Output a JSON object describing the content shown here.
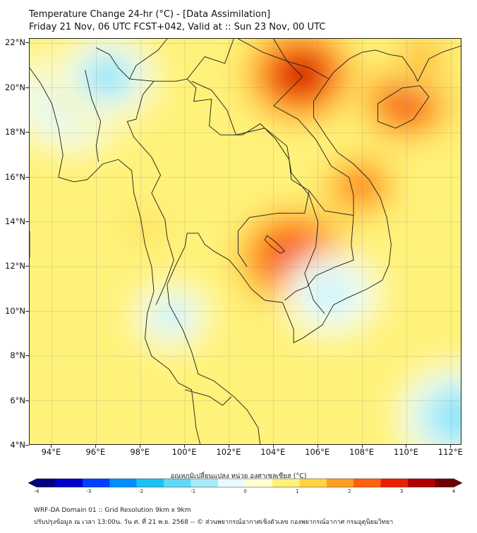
{
  "title_line1": "Temperature Change 24-hr (°C) - [Data Assimilation]",
  "title_line2": "Friday 21 Nov, 06 UTC FCST+042, Valid at :: Sun 23 Nov, 00 UTC",
  "lat_ticks": [
    "22°N",
    "20°N",
    "18°N",
    "16°N",
    "14°N",
    "12°N",
    "10°N",
    "8°N",
    "6°N",
    "4°N"
  ],
  "lon_ticks": [
    "94°E",
    "96°E",
    "98°E",
    "100°E",
    "102°E",
    "104°E",
    "106°E",
    "108°E",
    "110°E",
    "112°E"
  ],
  "colorbar": {
    "label": "อุณหภูมิเปลี่ยนแปลง หน่วย องศาเซลเซียส (°C)",
    "ticks": [
      "-4",
      "-3",
      "-2",
      "-1",
      "0",
      "1",
      "2",
      "3",
      "4"
    ],
    "min": -4,
    "max": 4,
    "colors": [
      "#00007f",
      "#0000cc",
      "#0040ff",
      "#0090ff",
      "#19c2f2",
      "#5fd8f5",
      "#a8ecfa",
      "#e8fbfd",
      "#ffffd0",
      "#fff27a",
      "#ffd540",
      "#ffa020",
      "#ff6010",
      "#e82000",
      "#b00000",
      "#6e0000"
    ]
  },
  "field": {
    "background_value": 0.6,
    "hotspots": [
      {
        "lon": 105.2,
        "lat": 20.6,
        "value": 3.0
      },
      {
        "lon": 104.9,
        "lat": 12.4,
        "value": 2.9
      },
      {
        "lon": 110.0,
        "lat": 19.4,
        "value": 2.6
      },
      {
        "lon": 107.9,
        "lat": 15.6,
        "value": 2.3
      },
      {
        "lon": 110.7,
        "lat": 21.3,
        "value": 1.8
      },
      {
        "lon": 98.2,
        "lat": 13.8,
        "value": 1.4
      },
      {
        "lon": 95.0,
        "lat": 19.5,
        "value": -1.3
      },
      {
        "lon": 96.5,
        "lat": 20.5,
        "value": -1.1
      },
      {
        "lon": 99.4,
        "lat": 9.8,
        "value": -0.7
      },
      {
        "lon": 106.6,
        "lat": 10.8,
        "value": -0.9
      },
      {
        "lon": 112.3,
        "lat": 5.3,
        "value": -1.4
      },
      {
        "lon": 99.5,
        "lat": 17.3,
        "value": 0.0
      }
    ]
  },
  "footer_line1": "WRF-DA Domain 01 :: Grid Resolution 9km x 9km",
  "footer_line2": "ปรับปรุงข้อมูล ณ เวลา 13:00น. วัน ศ. ที่ 21 พ.ย. 2568 -- © ส่วนพยากรณ์อากาศเชิงตัวเลข กองพยากรณ์อากาศ กรมอุตุนิยมวิทยา"
}
